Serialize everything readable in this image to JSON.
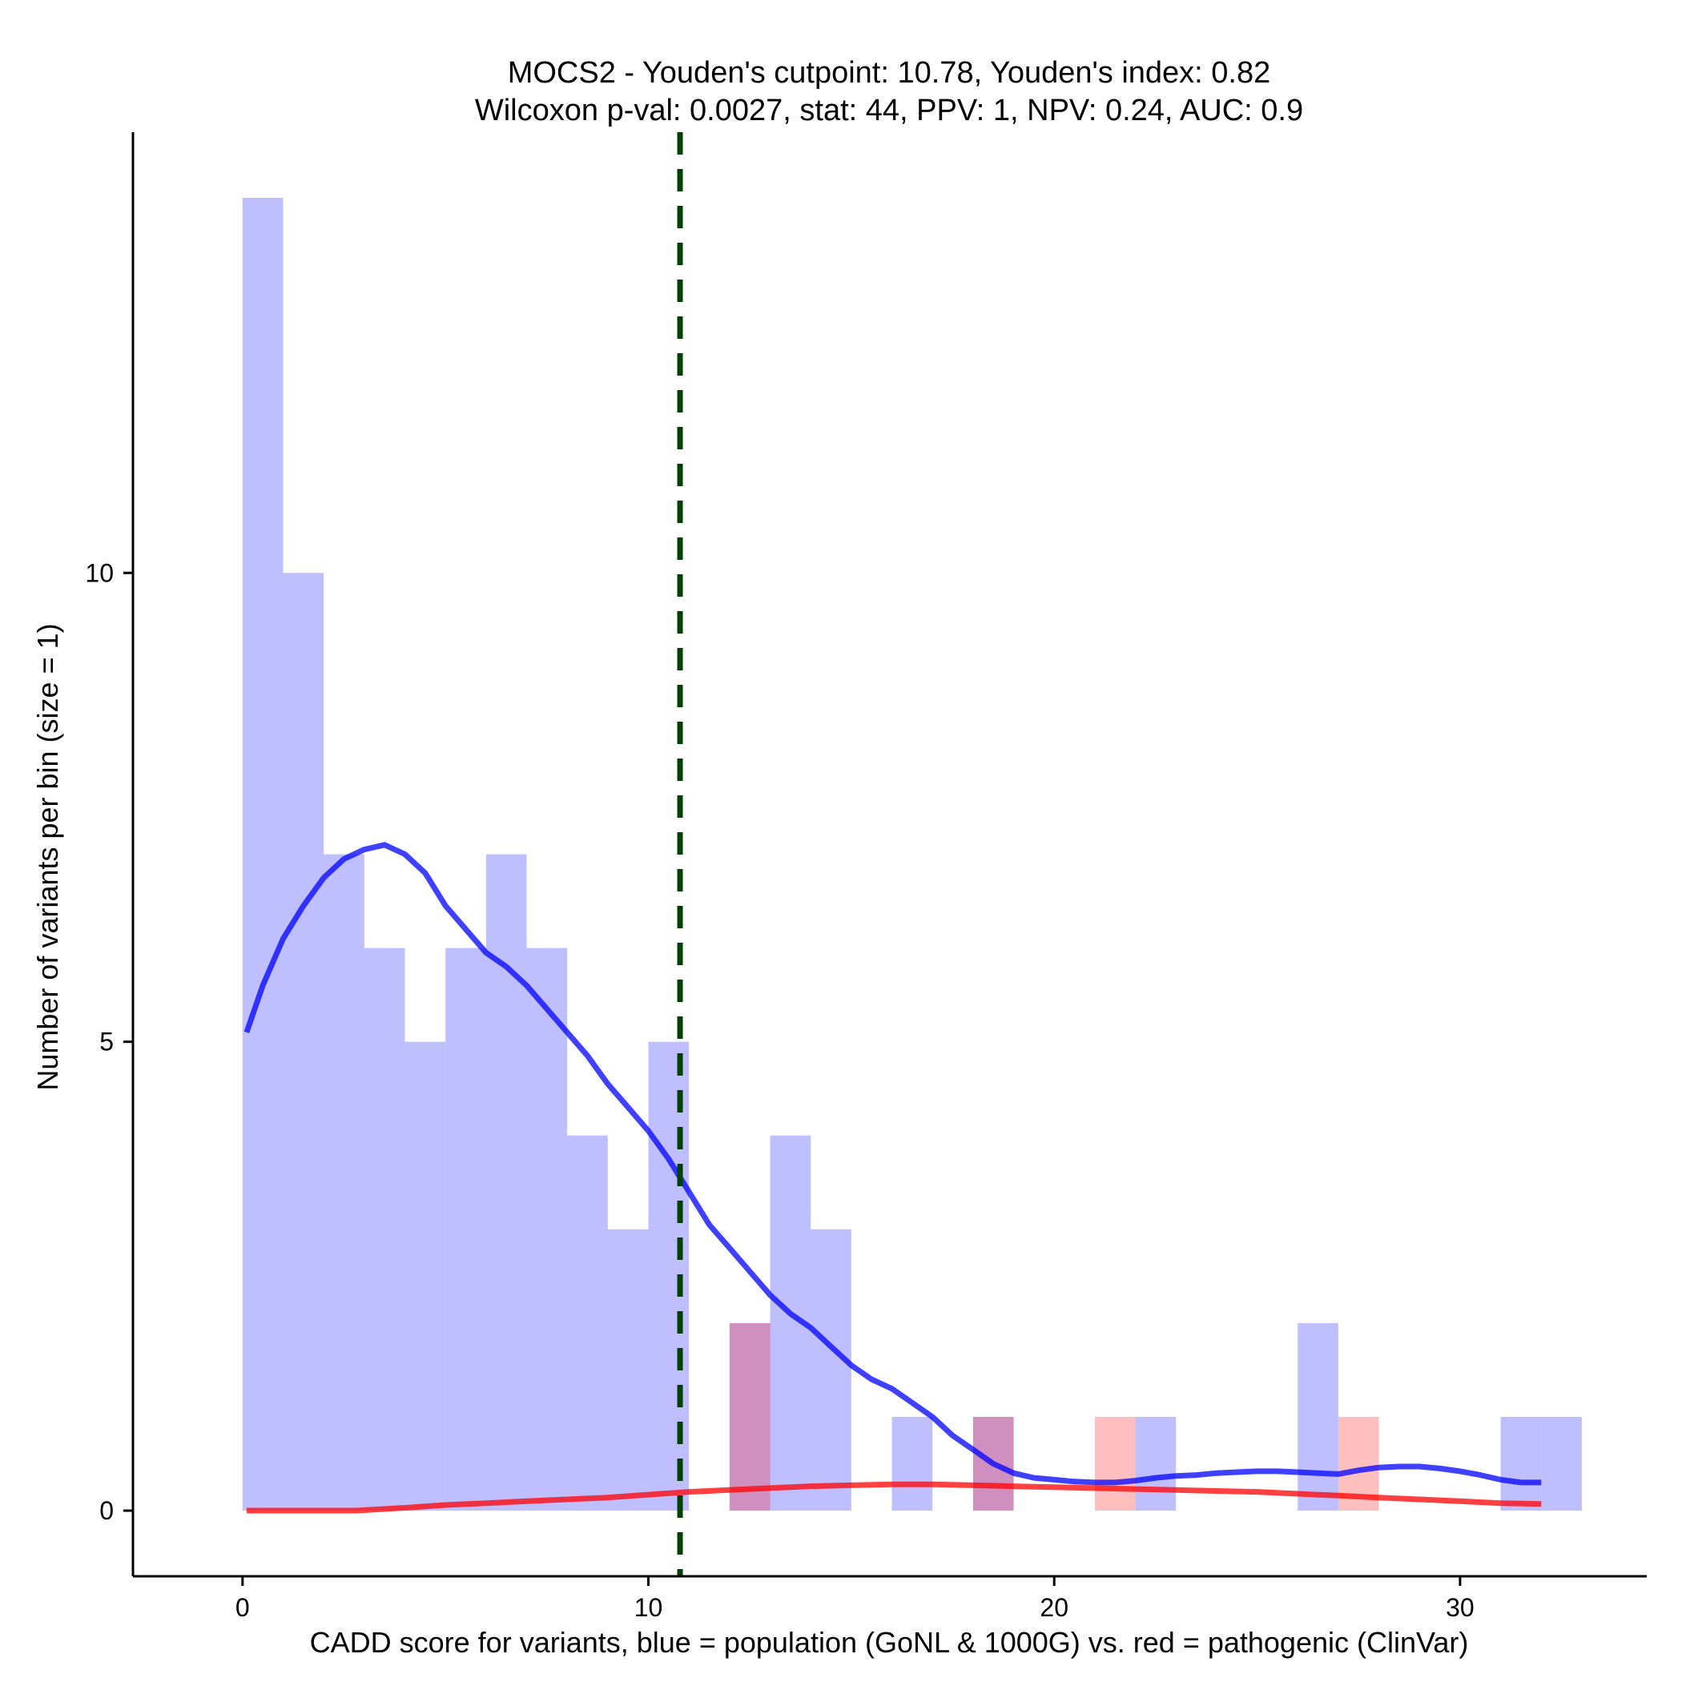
{
  "chart_data": {
    "type": "histogram-density",
    "title_line1": "MOCS2 - Youden's cutpoint: 10.78, Youden's index: 0.82",
    "title_line2": "Wilcoxon p-val: 0.0027, stat: 44, PPV: 1, NPV: 0.24, AUC: 0.9",
    "xlabel": "CADD score for variants, blue = population (GoNL & 1000G) vs. red = pathogenic (ClinVar)",
    "ylabel": "Number of variants per bin (size = 1)",
    "xlim": [
      -2.7,
      34.6
    ],
    "ylim": [
      -0.7,
      14.7
    ],
    "x_ticks": [
      0,
      10,
      20,
      30
    ],
    "y_ticks": [
      0,
      5,
      10
    ],
    "bin_width": 1,
    "cutpoint": 10.78,
    "colors": {
      "population": "#0000ff",
      "pathogenic": "#ff0000",
      "cutpoint": "#004000",
      "axis": "#000000"
    },
    "series": [
      {
        "name": "population (GoNL & 1000G)",
        "color": "#0000ff",
        "bins": [
          {
            "x": 0,
            "count": 14
          },
          {
            "x": 1,
            "count": 10
          },
          {
            "x": 2,
            "count": 7
          },
          {
            "x": 3,
            "count": 6
          },
          {
            "x": 4,
            "count": 5
          },
          {
            "x": 5,
            "count": 6
          },
          {
            "x": 6,
            "count": 7
          },
          {
            "x": 7,
            "count": 6
          },
          {
            "x": 8,
            "count": 4
          },
          {
            "x": 9,
            "count": 3
          },
          {
            "x": 10,
            "count": 5
          },
          {
            "x": 12,
            "count": 2
          },
          {
            "x": 13,
            "count": 4
          },
          {
            "x": 14,
            "count": 3
          },
          {
            "x": 16,
            "count": 1
          },
          {
            "x": 18,
            "count": 1
          },
          {
            "x": 22,
            "count": 1
          },
          {
            "x": 26,
            "count": 2
          },
          {
            "x": 31,
            "count": 1
          },
          {
            "x": 32,
            "count": 1
          }
        ],
        "density_curve": [
          [
            0.1,
            5.1
          ],
          [
            0.5,
            5.6
          ],
          [
            1,
            6.1
          ],
          [
            1.5,
            6.45
          ],
          [
            2,
            6.75
          ],
          [
            2.5,
            6.95
          ],
          [
            3,
            7.05
          ],
          [
            3.5,
            7.1
          ],
          [
            4,
            7.0
          ],
          [
            4.5,
            6.8
          ],
          [
            5,
            6.45
          ],
          [
            5.5,
            6.2
          ],
          [
            6,
            5.95
          ],
          [
            6.5,
            5.8
          ],
          [
            7,
            5.6
          ],
          [
            7.5,
            5.35
          ],
          [
            8,
            5.1
          ],
          [
            8.5,
            4.85
          ],
          [
            9,
            4.55
          ],
          [
            9.5,
            4.3
          ],
          [
            10,
            4.05
          ],
          [
            10.5,
            3.75
          ],
          [
            11,
            3.4
          ],
          [
            11.5,
            3.05
          ],
          [
            12,
            2.8
          ],
          [
            12.5,
            2.55
          ],
          [
            13,
            2.3
          ],
          [
            13.5,
            2.1
          ],
          [
            14,
            1.95
          ],
          [
            14.5,
            1.75
          ],
          [
            15,
            1.55
          ],
          [
            15.5,
            1.4
          ],
          [
            16,
            1.3
          ],
          [
            16.5,
            1.15
          ],
          [
            17,
            1.0
          ],
          [
            17.5,
            0.8
          ],
          [
            18,
            0.65
          ],
          [
            18.5,
            0.5
          ],
          [
            19,
            0.4
          ],
          [
            19.5,
            0.35
          ],
          [
            20,
            0.33
          ],
          [
            20.5,
            0.31
          ],
          [
            21,
            0.3
          ],
          [
            21.5,
            0.3
          ],
          [
            22,
            0.32
          ],
          [
            22.5,
            0.35
          ],
          [
            23,
            0.37
          ],
          [
            23.5,
            0.38
          ],
          [
            24,
            0.4
          ],
          [
            24.5,
            0.41
          ],
          [
            25,
            0.42
          ],
          [
            25.5,
            0.42
          ],
          [
            26,
            0.41
          ],
          [
            26.5,
            0.4
          ],
          [
            27,
            0.39
          ],
          [
            27.5,
            0.43
          ],
          [
            28,
            0.46
          ],
          [
            28.5,
            0.47
          ],
          [
            29,
            0.47
          ],
          [
            29.5,
            0.45
          ],
          [
            30,
            0.42
          ],
          [
            30.5,
            0.38
          ],
          [
            31,
            0.33
          ],
          [
            31.5,
            0.3
          ],
          [
            32,
            0.3
          ]
        ]
      },
      {
        "name": "pathogenic (ClinVar)",
        "color": "#ff0000",
        "bins": [
          {
            "x": 12,
            "count": 2
          },
          {
            "x": 18,
            "count": 1
          },
          {
            "x": 21,
            "count": 1
          },
          {
            "x": 27,
            "count": 1
          }
        ],
        "density_curve": [
          [
            0.1,
            0.0
          ],
          [
            1,
            0.0
          ],
          [
            2,
            0.0
          ],
          [
            2.8,
            0.0
          ],
          [
            4,
            0.03
          ],
          [
            5,
            0.06
          ],
          [
            6,
            0.08
          ],
          [
            7,
            0.1
          ],
          [
            8,
            0.12
          ],
          [
            9,
            0.14
          ],
          [
            10,
            0.17
          ],
          [
            11,
            0.2
          ],
          [
            12,
            0.22
          ],
          [
            13,
            0.24
          ],
          [
            14,
            0.26
          ],
          [
            15,
            0.27
          ],
          [
            16,
            0.28
          ],
          [
            17,
            0.28
          ],
          [
            18,
            0.27
          ],
          [
            19,
            0.26
          ],
          [
            20,
            0.25
          ],
          [
            21,
            0.24
          ],
          [
            22,
            0.23
          ],
          [
            23,
            0.22
          ],
          [
            24,
            0.21
          ],
          [
            25,
            0.2
          ],
          [
            26,
            0.18
          ],
          [
            27,
            0.16
          ],
          [
            28,
            0.14
          ],
          [
            29,
            0.12
          ],
          [
            30,
            0.1
          ],
          [
            31,
            0.08
          ],
          [
            32,
            0.07
          ]
        ]
      }
    ]
  }
}
